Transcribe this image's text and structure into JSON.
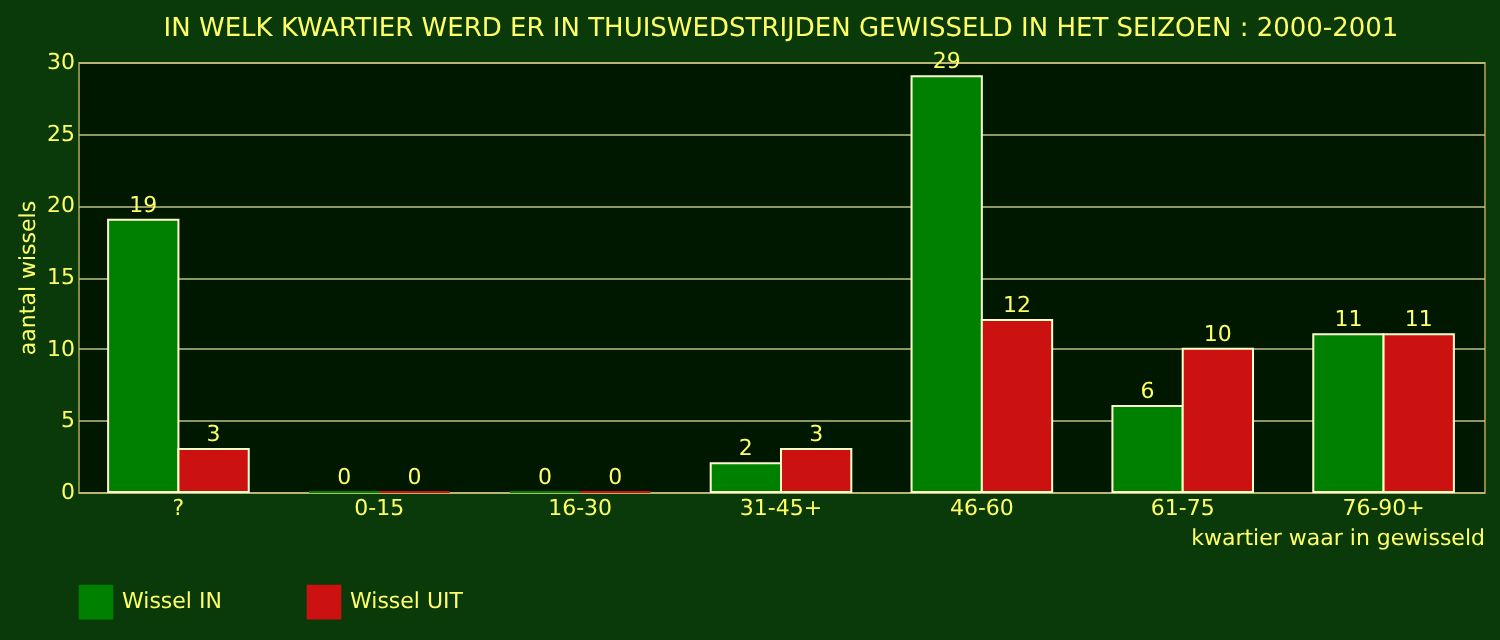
{
  "chart_data": {
    "type": "bar",
    "title": "IN WELK KWARTIER WERD ER IN THUISWEDSTRIJDEN GEWISSELD IN HET SEIZOEN : 2000-2001",
    "xlabel": "kwartier waar in gewisseld",
    "ylabel": "aantal wissels",
    "categories": [
      "?",
      "0-15",
      "16-30",
      "31-45+",
      "46-60",
      "61-75",
      "76-90+"
    ],
    "series": [
      {
        "name": "Wissel IN",
        "color": "#008000",
        "values": [
          19,
          0,
          0,
          2,
          29,
          6,
          11
        ]
      },
      {
        "name": "Wissel UIT",
        "color": "#cc1111",
        "values": [
          3,
          0,
          0,
          3,
          12,
          10,
          11
        ]
      }
    ],
    "ylim": [
      0,
      30
    ],
    "yticks": [
      0,
      5,
      10,
      15,
      20,
      25,
      30
    ],
    "grid": "y",
    "legend": "bottom",
    "data_labels": true
  }
}
